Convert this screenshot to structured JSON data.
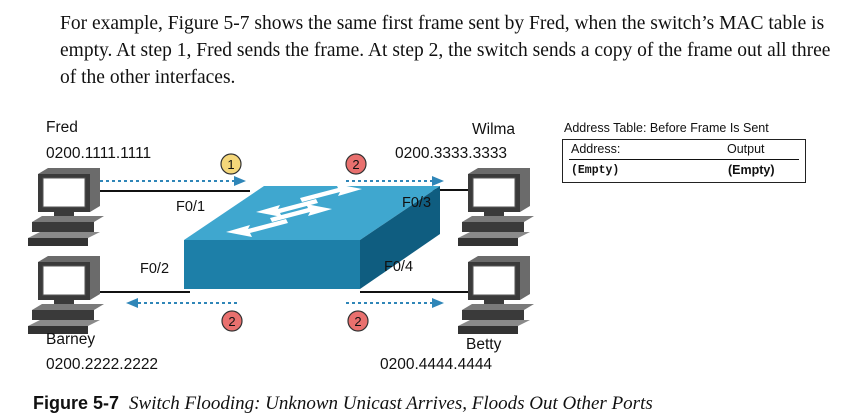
{
  "paragraph": "For example, Figure 5-7 shows the same first frame sent by Fred, when the switch’s MAC table is empty. At step 1, Fred sends the frame. At step 2, the switch sends a copy of the frame out all three of the other interfaces.",
  "hosts": {
    "fred": {
      "name": "Fred",
      "mac": "0200.1111.1111"
    },
    "wilma": {
      "name": "Wilma",
      "mac": "0200.3333.3333"
    },
    "barney": {
      "name": "Barney",
      "mac": "0200.2222.2222"
    },
    "betty": {
      "name": "Betty",
      "mac": "0200.4444.4444"
    }
  },
  "ports": {
    "fred": "F0/1",
    "barney": "F0/2",
    "wilma": "F0/3",
    "betty": "F0/4"
  },
  "steps": {
    "fred": "1",
    "wilma": "2",
    "barney": "2",
    "betty": "2"
  },
  "address_table": {
    "title": "Address Table:  Before Frame Is Sent",
    "col_address": "Address:",
    "col_output": "Output",
    "row_address": "(Empty)",
    "row_output": "(Empty)"
  },
  "caption": {
    "number": "Figure 5-7",
    "text": "Switch Flooding: Unknown Unicast Arrives, Floods Out Other Ports"
  },
  "colors": {
    "switch_front": "#1d7fa8",
    "switch_top": "#3fa7cf",
    "switch_side": "#0f5d80",
    "step1_badge": "#f5d77a",
    "step2_badge": "#e9706e",
    "arrow": "#2f86b8",
    "pc_body": "#3a3a3a"
  },
  "icons": [
    "pc-icon",
    "switch-icon",
    "step-badge",
    "dashed-arrow"
  ]
}
